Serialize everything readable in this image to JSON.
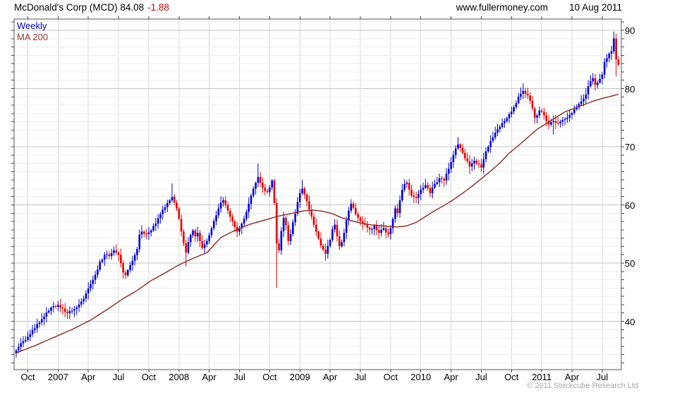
{
  "header": {
    "title": "McDonald's Corp (MCD) 84.08",
    "change": "-1.88",
    "site": "www.fullermoney.com",
    "date": "10 Aug 2011"
  },
  "legend": {
    "series1_label": "Weekly",
    "series2_label": "MA 200"
  },
  "footer": {
    "copyright": "© 2011 Stockcube Research Ltd"
  },
  "colors": {
    "up_candle": "#0000d8",
    "down_candle": "#e60000",
    "ma_line": "#8c2a22",
    "legend_weekly": "#0000cc",
    "legend_ma": "#9c3333",
    "change_text": "#cc0000",
    "grid_major": "#c4c4c4",
    "grid_minor": "#ececec",
    "grid_vertical": "#d8d8d8",
    "border": "#555555"
  },
  "chart_data": {
    "type": "candlestick",
    "title": "McDonald's Corp (MCD) weekly candles with 200-period moving average",
    "periodicity": "Weekly",
    "last_price": 84.08,
    "last_change": -1.88,
    "x_axis": {
      "tick_labels": [
        "Oct",
        "2007",
        "Apr",
        "Jul",
        "Oct",
        "2008",
        "Apr",
        "Jul",
        "Oct",
        "2009",
        "Apr",
        "Jul",
        "Oct",
        "2010",
        "Apr",
        "Jul",
        "Oct",
        "2011",
        "Apr",
        "Jul"
      ],
      "tick_weeks": [
        5,
        18,
        31,
        44,
        57,
        70,
        83,
        96,
        109,
        122,
        135,
        148,
        161,
        174,
        187,
        200,
        213,
        226,
        239,
        252
      ],
      "total_weeks": 260,
      "start": "Sep 2006",
      "end": "Aug 2011"
    },
    "y_axis": {
      "ticks": [
        40,
        50,
        60,
        70,
        80,
        90
      ],
      "top_price": 91.9,
      "bottom_price": 31.7,
      "minor_step": 1.4286,
      "side": "right"
    },
    "grid": "on",
    "series": [
      {
        "name": "Weekly",
        "kind": "candles",
        "close_anchors": [
          [
            0,
            35.0
          ],
          [
            1,
            35.6
          ],
          [
            2,
            36.2
          ],
          [
            4,
            36.8
          ],
          [
            6,
            37.8
          ],
          [
            8,
            38.8
          ],
          [
            10,
            39.8
          ],
          [
            12,
            40.8
          ],
          [
            14,
            41.8
          ],
          [
            16,
            42.6
          ],
          [
            18,
            42.8
          ],
          [
            20,
            42.2
          ],
          [
            22,
            41.4
          ],
          [
            24,
            41.8
          ],
          [
            26,
            42.4
          ],
          [
            28,
            43.4
          ],
          [
            30,
            44.8
          ],
          [
            32,
            46.4
          ],
          [
            34,
            48.0
          ],
          [
            36,
            50.2
          ],
          [
            38,
            51.4
          ],
          [
            40,
            51.2
          ],
          [
            42,
            52.2
          ],
          [
            44,
            51.4
          ],
          [
            45,
            50.0
          ],
          [
            46,
            48.4
          ],
          [
            47,
            47.9
          ],
          [
            48,
            48.8
          ],
          [
            50,
            50.4
          ],
          [
            52,
            52.4
          ],
          [
            53,
            54.9
          ],
          [
            54,
            55.4
          ],
          [
            56,
            55.0
          ],
          [
            58,
            55.6
          ],
          [
            60,
            56.8
          ],
          [
            62,
            58.4
          ],
          [
            64,
            59.6
          ],
          [
            66,
            60.8
          ],
          [
            67,
            61.4
          ],
          [
            68,
            60.4
          ],
          [
            69,
            59.4
          ],
          [
            70,
            57.6
          ],
          [
            71,
            55.4
          ],
          [
            72,
            53.4
          ],
          [
            73,
            51.8
          ],
          [
            74,
            53.6
          ],
          [
            75,
            54.8
          ],
          [
            76,
            55.6
          ],
          [
            77,
            54.6
          ],
          [
            78,
            55.2
          ],
          [
            79,
            53.8
          ],
          [
            80,
            52.6
          ],
          [
            81,
            53.2
          ],
          [
            82,
            53.8
          ],
          [
            83,
            54.8
          ],
          [
            84,
            56.0
          ],
          [
            85,
            57.2
          ],
          [
            86,
            58.2
          ],
          [
            87,
            59.4
          ],
          [
            88,
            60.4
          ],
          [
            89,
            60.8
          ],
          [
            90,
            60.0
          ],
          [
            91,
            59.0
          ],
          [
            92,
            58.0
          ],
          [
            93,
            57.2
          ],
          [
            94,
            56.2
          ],
          [
            95,
            55.4
          ],
          [
            96,
            56.0
          ],
          [
            97,
            56.8
          ],
          [
            98,
            57.6
          ],
          [
            99,
            58.8
          ],
          [
            100,
            60.2
          ],
          [
            101,
            61.6
          ],
          [
            102,
            62.8
          ],
          [
            103,
            63.8
          ],
          [
            104,
            64.8
          ],
          [
            105,
            63.8
          ],
          [
            106,
            63.0
          ],
          [
            107,
            62.4
          ],
          [
            108,
            62.2
          ],
          [
            109,
            63.0
          ],
          [
            110,
            64.2
          ],
          [
            111,
            60.3
          ],
          [
            112,
            53.4
          ],
          [
            113,
            52.2
          ],
          [
            114,
            55.5
          ],
          [
            115,
            57.8
          ],
          [
            116,
            56.5
          ],
          [
            117,
            53.8
          ],
          [
            118,
            55.0
          ],
          [
            119,
            57.0
          ],
          [
            120,
            58.5
          ],
          [
            121,
            60.5
          ],
          [
            122,
            62.0
          ],
          [
            123,
            62.8
          ],
          [
            124,
            61.8
          ],
          [
            125,
            60.6
          ],
          [
            126,
            59.2
          ],
          [
            127,
            58.0
          ],
          [
            128,
            56.6
          ],
          [
            129,
            55.4
          ],
          [
            130,
            54.2
          ],
          [
            131,
            53.0
          ],
          [
            133,
            51.6
          ],
          [
            135,
            54.0
          ],
          [
            136,
            55.8
          ],
          [
            137,
            56.6
          ],
          [
            138,
            54.6
          ],
          [
            139,
            52.9
          ],
          [
            140,
            53.6
          ],
          [
            141,
            55.2
          ],
          [
            142,
            57.4
          ],
          [
            143,
            59.0
          ],
          [
            144,
            60.2
          ],
          [
            146,
            58.4
          ],
          [
            148,
            57.2
          ],
          [
            150,
            56.6
          ],
          [
            152,
            55.8
          ],
          [
            154,
            56.4
          ],
          [
            156,
            55.2
          ],
          [
            158,
            56.0
          ],
          [
            160,
            55.0
          ],
          [
            161,
            56.0
          ],
          [
            162,
            57.6
          ],
          [
            163,
            59.4
          ],
          [
            164,
            58.6
          ],
          [
            165,
            60.8
          ],
          [
            166,
            62.6
          ],
          [
            167,
            63.6
          ],
          [
            168,
            63.8
          ],
          [
            170,
            61.6
          ],
          [
            172,
            61.2
          ],
          [
            174,
            62.6
          ],
          [
            176,
            63.4
          ],
          [
            178,
            62.0
          ],
          [
            180,
            63.6
          ],
          [
            182,
            64.6
          ],
          [
            184,
            64.2
          ],
          [
            186,
            66.2
          ],
          [
            188,
            68.6
          ],
          [
            190,
            70.4
          ],
          [
            191,
            69.8
          ],
          [
            193,
            68.0
          ],
          [
            195,
            66.6
          ],
          [
            197,
            67.6
          ],
          [
            199,
            67.0
          ],
          [
            200,
            66.4
          ],
          [
            202,
            69.2
          ],
          [
            204,
            71.0
          ],
          [
            206,
            72.4
          ],
          [
            208,
            73.4
          ],
          [
            210,
            74.4
          ],
          [
            212,
            75.6
          ],
          [
            214,
            76.8
          ],
          [
            216,
            78.6
          ],
          [
            218,
            79.6
          ],
          [
            220,
            78.8
          ],
          [
            222,
            76.6
          ],
          [
            223,
            75.0
          ],
          [
            225,
            76.2
          ],
          [
            227,
            75.4
          ],
          [
            229,
            73.8
          ],
          [
            231,
            74.4
          ],
          [
            233,
            74.0
          ],
          [
            235,
            74.6
          ],
          [
            237,
            75.0
          ],
          [
            239,
            75.8
          ],
          [
            241,
            76.8
          ],
          [
            243,
            77.8
          ],
          [
            245,
            79.0
          ],
          [
            246,
            80.4
          ],
          [
            248,
            81.8
          ],
          [
            249,
            80.6
          ],
          [
            250,
            81.0
          ],
          [
            252,
            82.4
          ],
          [
            253,
            84.6
          ],
          [
            254,
            85.2
          ],
          [
            255,
            86.0
          ],
          [
            256,
            86.4
          ],
          [
            257,
            88.6
          ],
          [
            258,
            85.0
          ],
          [
            259,
            84.08
          ]
        ],
        "wick_overrides": {
          "67": [
            63.7,
            null
          ],
          "73": [
            null,
            49.4
          ],
          "104": [
            67.1,
            null
          ],
          "112": [
            null,
            45.8
          ],
          "123": [
            64.3,
            null
          ],
          "133": [
            null,
            50.4
          ],
          "144": [
            61.0,
            null
          ],
          "152": [
            null,
            54.8
          ],
          "190": [
            71.6,
            null
          ],
          "195": [
            null,
            65.3
          ],
          "218": [
            80.9,
            null
          ],
          "231": [
            null,
            72.1
          ],
          "257": [
            89.8,
            null
          ],
          "258": [
            null,
            82.1
          ]
        },
        "jitter": 0.5,
        "wick_base": 0.2,
        "wick_rand": 0.9
      },
      {
        "name": "MA 200",
        "kind": "line",
        "anchors": [
          [
            0,
            34.6
          ],
          [
            8,
            35.8
          ],
          [
            16,
            37.2
          ],
          [
            24,
            38.6
          ],
          [
            32,
            40.2
          ],
          [
            39,
            42.0
          ],
          [
            46,
            43.9
          ],
          [
            52,
            45.3
          ],
          [
            58,
            47.0
          ],
          [
            64,
            48.3
          ],
          [
            70,
            49.7
          ],
          [
            76,
            50.8
          ],
          [
            82,
            51.8
          ],
          [
            88,
            54.4
          ],
          [
            94,
            55.6
          ],
          [
            100,
            56.6
          ],
          [
            106,
            57.3
          ],
          [
            112,
            58.0
          ],
          [
            118,
            58.5
          ],
          [
            124,
            59.0
          ],
          [
            128,
            59.1
          ],
          [
            132,
            58.9
          ],
          [
            136,
            58.5
          ],
          [
            140,
            57.8
          ],
          [
            144,
            57.3
          ],
          [
            148,
            56.9
          ],
          [
            152,
            56.6
          ],
          [
            156,
            56.45
          ],
          [
            160,
            56.3
          ],
          [
            164,
            56.2
          ],
          [
            168,
            56.4
          ],
          [
            172,
            57.0
          ],
          [
            176,
            58.0
          ],
          [
            180,
            59.0
          ],
          [
            184,
            59.9
          ],
          [
            188,
            60.9
          ],
          [
            192,
            62.0
          ],
          [
            196,
            63.2
          ],
          [
            200,
            64.5
          ],
          [
            204,
            65.8
          ],
          [
            208,
            67.2
          ],
          [
            212,
            68.9
          ],
          [
            216,
            70.2
          ],
          [
            220,
            71.6
          ],
          [
            224,
            73.0
          ],
          [
            228,
            74.0
          ],
          [
            232,
            75.0
          ],
          [
            236,
            76.0
          ],
          [
            240,
            76.6
          ],
          [
            244,
            77.2
          ],
          [
            248,
            77.8
          ],
          [
            252,
            78.3
          ],
          [
            256,
            78.7
          ],
          [
            259,
            79.0
          ]
        ]
      }
    ]
  }
}
